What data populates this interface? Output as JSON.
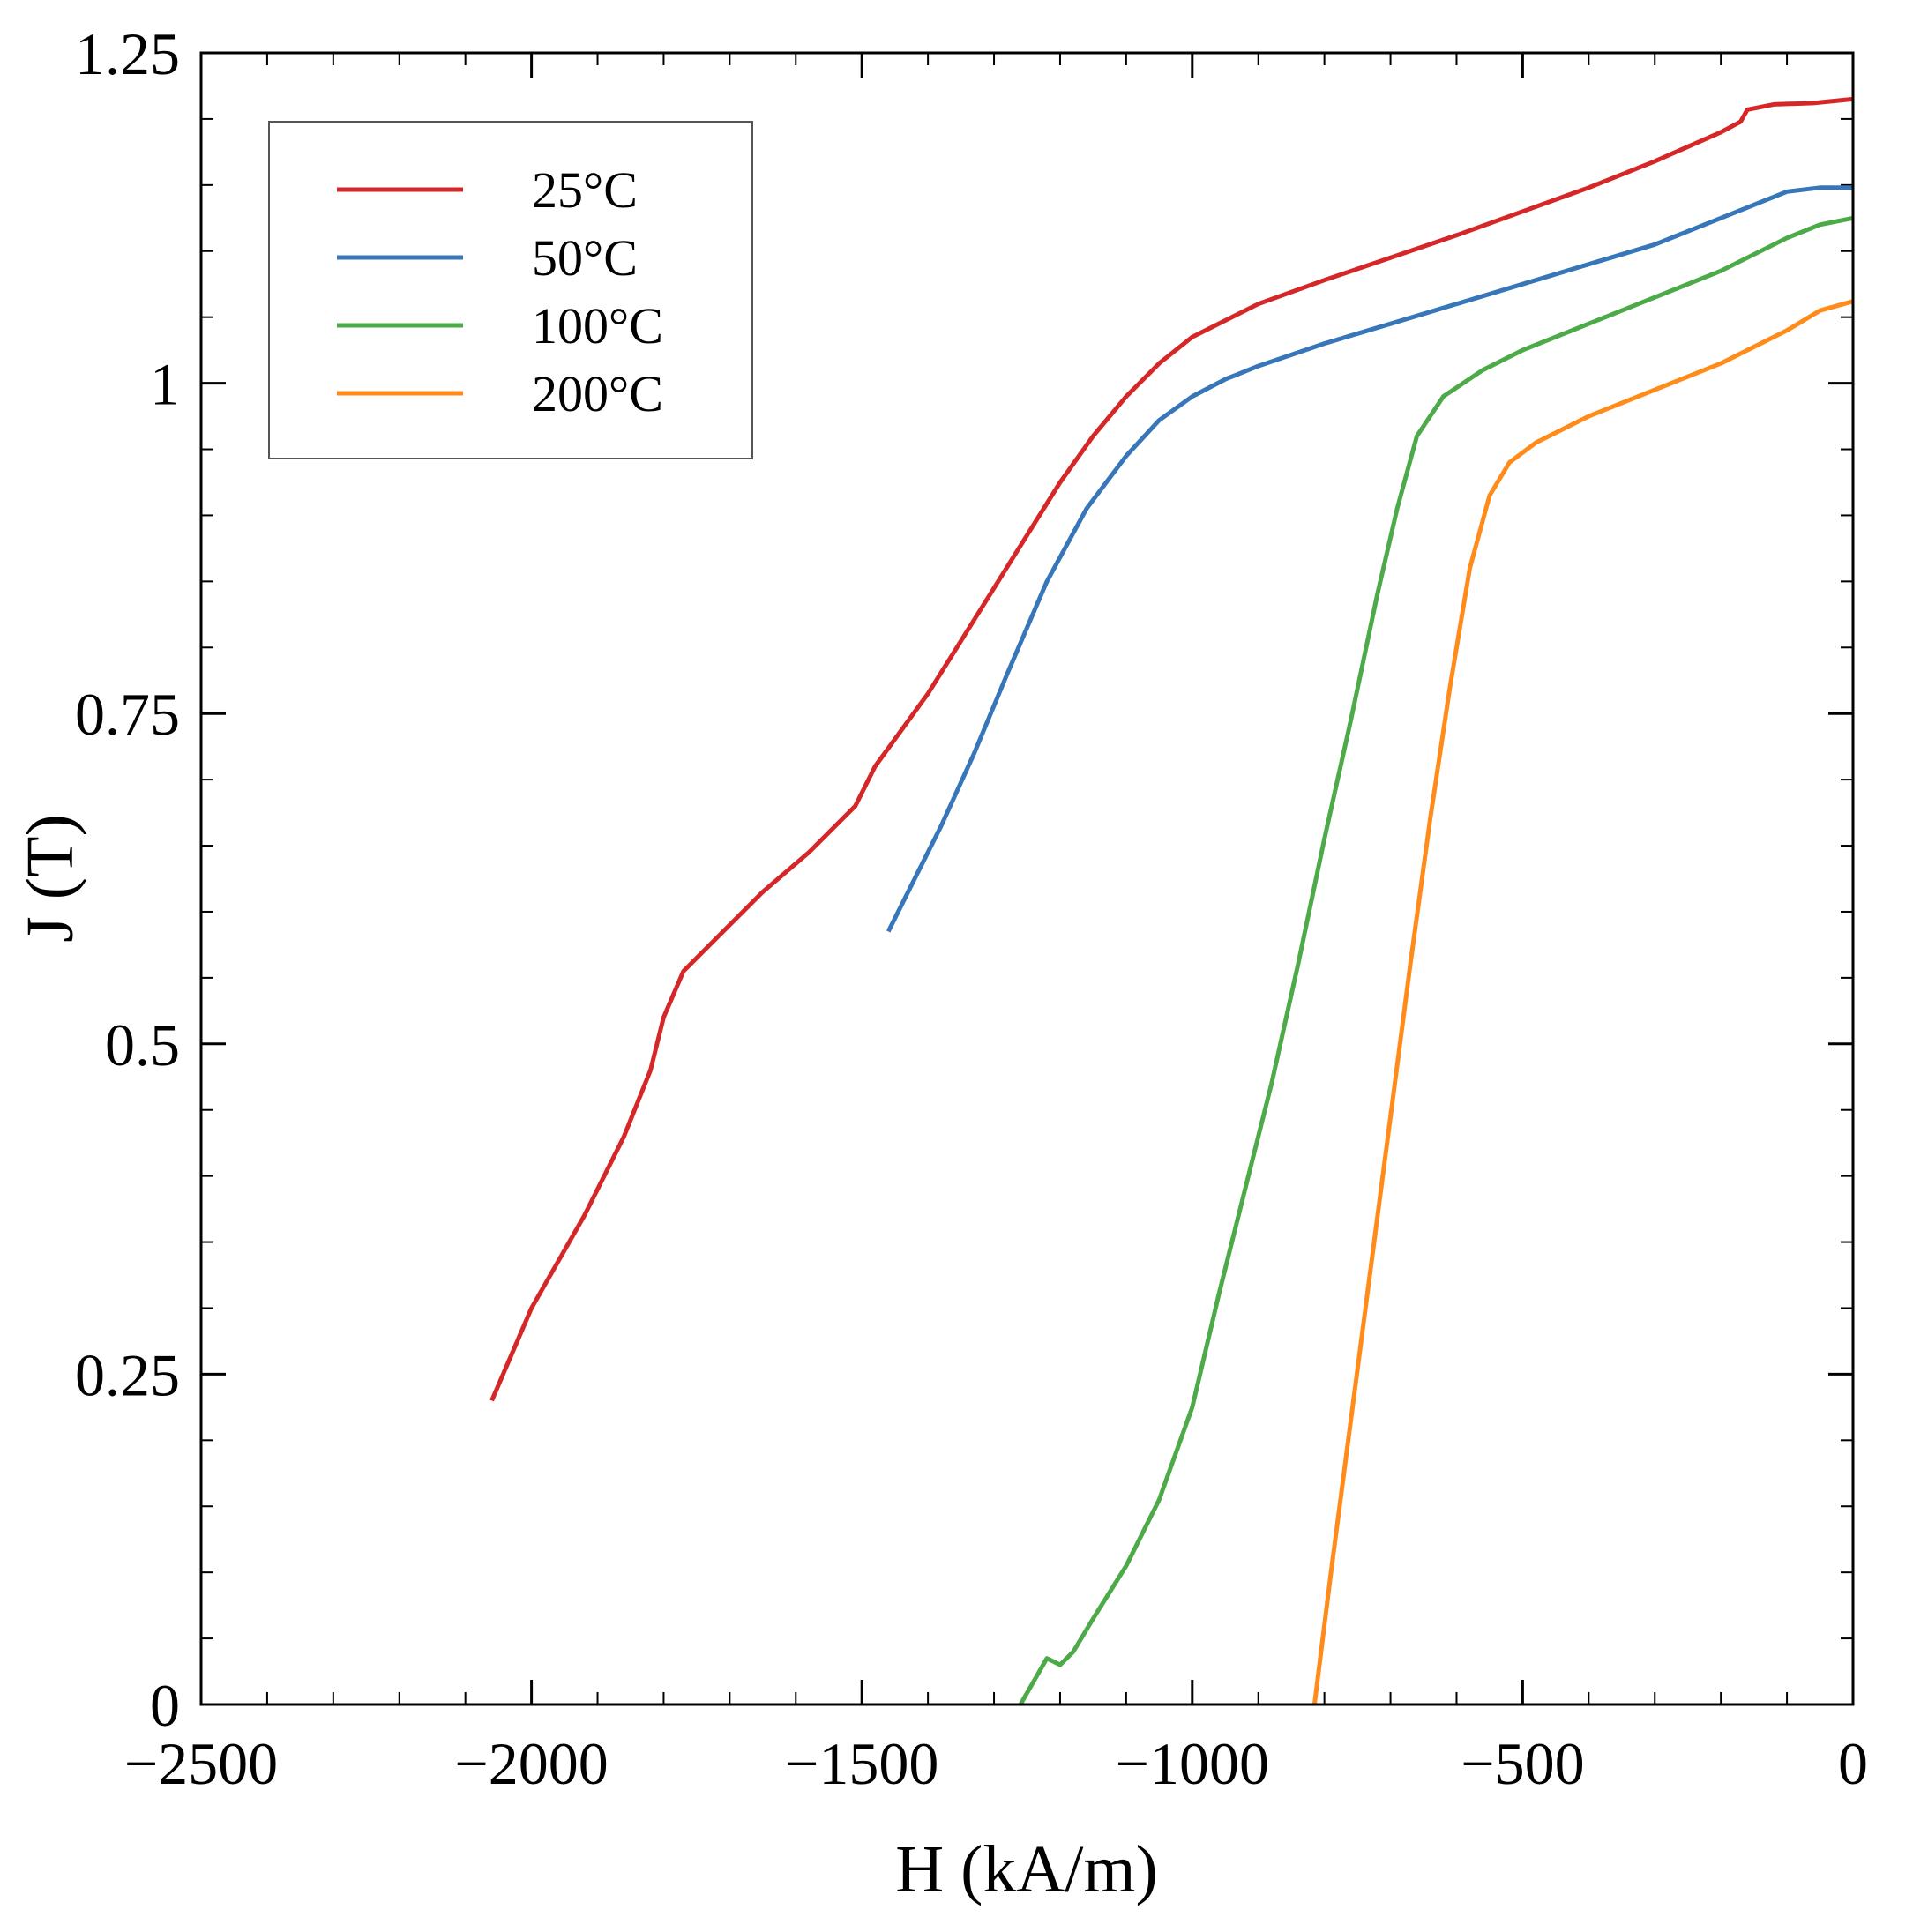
{
  "chart_data": {
    "type": "line",
    "title": "",
    "xlabel": "H (kA/m)",
    "ylabel": "J (T)",
    "xlim": [
      -2500,
      0
    ],
    "ylim": [
      0,
      1.25
    ],
    "x_ticks": [
      -2500,
      -2000,
      -1500,
      -1000,
      -500,
      0
    ],
    "x_tick_labels": [
      "−2500",
      "−2000",
      "−1500",
      "−1000",
      "−500",
      "0"
    ],
    "y_ticks": [
      0,
      0.25,
      0.5,
      0.75,
      1,
      1.25
    ],
    "y_tick_labels": [
      "0",
      "0.25",
      "0.5",
      "0.75",
      "1",
      "1.25"
    ],
    "x_minor_step": 100,
    "y_minor_step": 0.05,
    "grid": false,
    "legend_position": "top-left",
    "series": [
      {
        "name": "25°C",
        "color": "#d62728",
        "points": [
          [
            -2060,
            0.23
          ],
          [
            -2000,
            0.3
          ],
          [
            -1920,
            0.37
          ],
          [
            -1860,
            0.43
          ],
          [
            -1820,
            0.48
          ],
          [
            -1800,
            0.52
          ],
          [
            -1770,
            0.555
          ],
          [
            -1720,
            0.58
          ],
          [
            -1650,
            0.615
          ],
          [
            -1580,
            0.645
          ],
          [
            -1510,
            0.68
          ],
          [
            -1480,
            0.71
          ],
          [
            -1400,
            0.765
          ],
          [
            -1350,
            0.805
          ],
          [
            -1300,
            0.845
          ],
          [
            -1250,
            0.885
          ],
          [
            -1200,
            0.925
          ],
          [
            -1150,
            0.96
          ],
          [
            -1100,
            0.99
          ],
          [
            -1050,
            1.015
          ],
          [
            -1000,
            1.035
          ],
          [
            -900,
            1.06
          ],
          [
            -800,
            1.078
          ],
          [
            -700,
            1.095
          ],
          [
            -600,
            1.112
          ],
          [
            -500,
            1.13
          ],
          [
            -400,
            1.148
          ],
          [
            -300,
            1.168
          ],
          [
            -200,
            1.19
          ],
          [
            -170,
            1.198
          ],
          [
            -160,
            1.207
          ],
          [
            -120,
            1.211
          ],
          [
            -60,
            1.212
          ],
          [
            0,
            1.215
          ]
        ]
      },
      {
        "name": "50°C",
        "color": "#3777b9",
        "points": [
          [
            -1460,
            0.585
          ],
          [
            -1420,
            0.625
          ],
          [
            -1380,
            0.665
          ],
          [
            -1330,
            0.72
          ],
          [
            -1280,
            0.78
          ],
          [
            -1220,
            0.85
          ],
          [
            -1160,
            0.905
          ],
          [
            -1100,
            0.945
          ],
          [
            -1050,
            0.972
          ],
          [
            -1000,
            0.99
          ],
          [
            -950,
            1.003
          ],
          [
            -900,
            1.013
          ],
          [
            -800,
            1.03
          ],
          [
            -700,
            1.045
          ],
          [
            -600,
            1.06
          ],
          [
            -500,
            1.075
          ],
          [
            -400,
            1.09
          ],
          [
            -300,
            1.105
          ],
          [
            -200,
            1.125
          ],
          [
            -100,
            1.145
          ],
          [
            -50,
            1.148
          ],
          [
            0,
            1.148
          ]
        ]
      },
      {
        "name": "100°C",
        "color": "#4daa48",
        "points": [
          [
            -1260,
            0.0
          ],
          [
            -1220,
            0.035
          ],
          [
            -1200,
            0.03
          ],
          [
            -1180,
            0.04
          ],
          [
            -1150,
            0.065
          ],
          [
            -1100,
            0.105
          ],
          [
            -1050,
            0.155
          ],
          [
            -1000,
            0.225
          ],
          [
            -960,
            0.31
          ],
          [
            -920,
            0.39
          ],
          [
            -880,
            0.47
          ],
          [
            -840,
            0.56
          ],
          [
            -800,
            0.655
          ],
          [
            -760,
            0.745
          ],
          [
            -720,
            0.84
          ],
          [
            -690,
            0.905
          ],
          [
            -660,
            0.96
          ],
          [
            -620,
            0.99
          ],
          [
            -560,
            1.01
          ],
          [
            -500,
            1.025
          ],
          [
            -400,
            1.045
          ],
          [
            -300,
            1.065
          ],
          [
            -200,
            1.085
          ],
          [
            -100,
            1.11
          ],
          [
            -50,
            1.12
          ],
          [
            0,
            1.125
          ]
        ]
      },
      {
        "name": "200°C",
        "color": "#ff8c1a",
        "points": [
          [
            -815,
            0.0
          ],
          [
            -790,
            0.1
          ],
          [
            -760,
            0.215
          ],
          [
            -730,
            0.33
          ],
          [
            -700,
            0.445
          ],
          [
            -670,
            0.56
          ],
          [
            -640,
            0.67
          ],
          [
            -610,
            0.77
          ],
          [
            -580,
            0.86
          ],
          [
            -550,
            0.915
          ],
          [
            -520,
            0.94
          ],
          [
            -480,
            0.955
          ],
          [
            -400,
            0.975
          ],
          [
            -300,
            0.995
          ],
          [
            -200,
            1.015
          ],
          [
            -100,
            1.04
          ],
          [
            -50,
            1.055
          ],
          [
            0,
            1.062
          ]
        ]
      }
    ]
  }
}
